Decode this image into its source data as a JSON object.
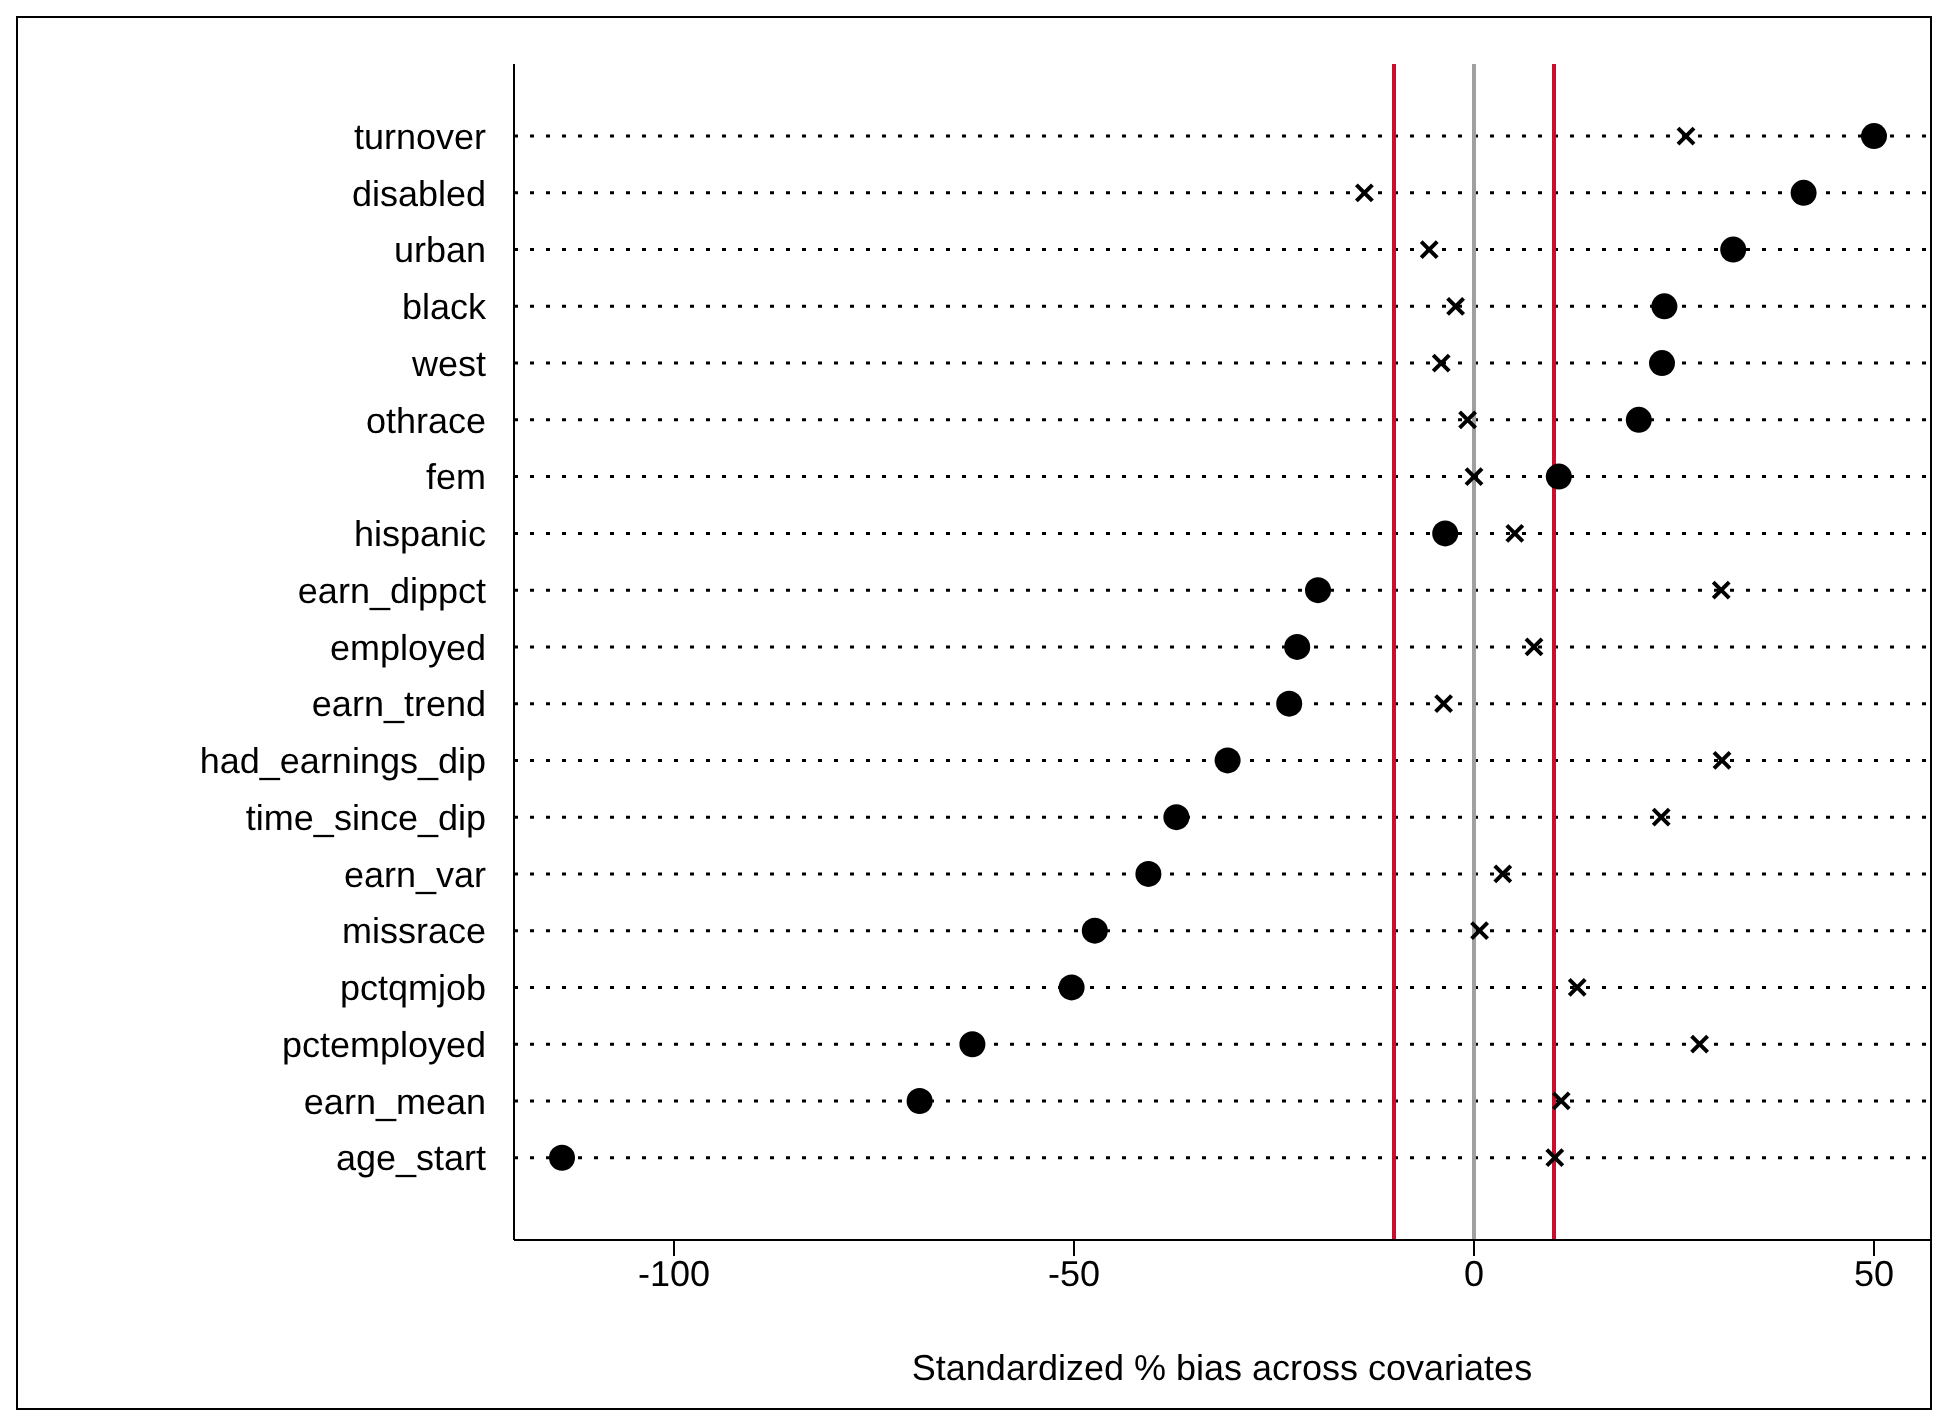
{
  "chart_data": {
    "type": "scatter",
    "xlabel": "Standardized % bias across covariates",
    "categories": [
      "turnover",
      "disabled",
      "urban",
      "black",
      "west",
      "othrace",
      "fem",
      "hispanic",
      "earn_dippct",
      "employed",
      "earn_trend",
      "had_earnings_dip",
      "time_since_dip",
      "earn_var",
      "missrace",
      "pctqmjob",
      "pctemployed",
      "earn_mean",
      "age_start"
    ],
    "series": [
      {
        "color": "#000000",
        "marker": "circle",
        "values": [
          50,
          41.2,
          32.4,
          23.8,
          23.5,
          20.6,
          10.6,
          -3.6,
          -19.5,
          -22.1,
          -23.1,
          -30.8,
          -37.2,
          -40.7,
          -47.4,
          -50.3,
          -62.7,
          -69.3,
          -114
        ]
      },
      {
        "color": "#000000",
        "marker": "cross",
        "values": [
          26.5,
          -13.7,
          -5.6,
          -2.3,
          -4.1,
          -0.8,
          0,
          5.1,
          30.9,
          7.5,
          -3.8,
          31,
          23.4,
          3.6,
          0.7,
          12.9,
          28.2,
          10.9,
          10.1
        ]
      }
    ],
    "orientation": "horizontal",
    "xlim": [
      -120,
      57
    ],
    "xticks": [
      -100,
      -50,
      0,
      50
    ],
    "grid": "y",
    "ref_lines": [
      {
        "axis": "x",
        "value": -10,
        "color": "#c8102e"
      },
      {
        "axis": "x",
        "value": 0,
        "color": "#a0a0a0"
      },
      {
        "axis": "x",
        "value": 10,
        "color": "#c8102e"
      }
    ]
  }
}
